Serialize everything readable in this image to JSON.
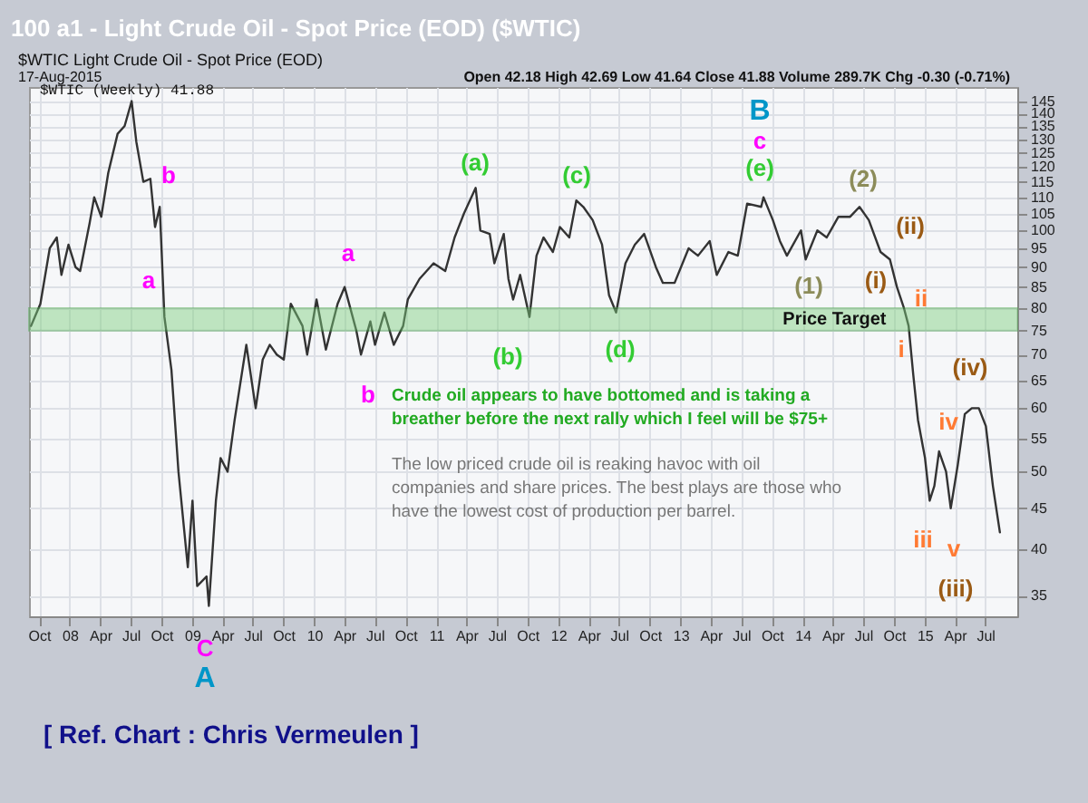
{
  "chart_data": {
    "type": "line",
    "title": "100 a1 - Light Crude Oil - Spot Price (EOD) ($WTIC)",
    "subtitle": "$WTIC Light Crude Oil - Spot Price (EOD)",
    "log": "y",
    "grid": true,
    "xlim": [
      "2007-09-01",
      "2015-10-05"
    ],
    "ylim": [
      33,
      151
    ],
    "xticks": [
      {
        "value": "2007-10-01",
        "label": "Oct"
      },
      {
        "value": "2008-01-01",
        "label": "08"
      },
      {
        "value": "2008-04-01",
        "label": "Apr"
      },
      {
        "value": "2008-07-01",
        "label": "Jul"
      },
      {
        "value": "2008-10-01",
        "label": "Oct"
      },
      {
        "value": "2009-01-01",
        "label": "09"
      },
      {
        "value": "2009-04-01",
        "label": "Apr"
      },
      {
        "value": "2009-07-01",
        "label": "Jul"
      },
      {
        "value": "2009-10-01",
        "label": "Oct"
      },
      {
        "value": "2010-01-01",
        "label": "10"
      },
      {
        "value": "2010-04-01",
        "label": "Apr"
      },
      {
        "value": "2010-07-01",
        "label": "Jul"
      },
      {
        "value": "2010-10-01",
        "label": "Oct"
      },
      {
        "value": "2011-01-01",
        "label": "11"
      },
      {
        "value": "2011-04-01",
        "label": "Apr"
      },
      {
        "value": "2011-07-01",
        "label": "Jul"
      },
      {
        "value": "2011-10-01",
        "label": "Oct"
      },
      {
        "value": "2012-01-01",
        "label": "12"
      },
      {
        "value": "2012-04-01",
        "label": "Apr"
      },
      {
        "value": "2012-07-01",
        "label": "Jul"
      },
      {
        "value": "2012-10-01",
        "label": "Oct"
      },
      {
        "value": "2013-01-01",
        "label": "13"
      },
      {
        "value": "2013-04-01",
        "label": "Apr"
      },
      {
        "value": "2013-07-01",
        "label": "Jul"
      },
      {
        "value": "2013-10-01",
        "label": "Oct"
      },
      {
        "value": "2014-01-01",
        "label": "14"
      },
      {
        "value": "2014-04-01",
        "label": "Apr"
      },
      {
        "value": "2014-07-01",
        "label": "Jul"
      },
      {
        "value": "2014-10-01",
        "label": "Oct"
      },
      {
        "value": "2015-01-01",
        "label": "15"
      },
      {
        "value": "2015-04-01",
        "label": "Apr"
      },
      {
        "value": "2015-07-01",
        "label": "Jul"
      }
    ],
    "yticks": [
      35,
      40,
      45,
      50,
      55,
      60,
      65,
      70,
      75,
      80,
      85,
      90,
      95,
      100,
      105,
      110,
      115,
      120,
      125,
      130,
      135,
      140,
      145
    ],
    "x": [
      "2007-09-07",
      "2007-10-05",
      "2007-11-02",
      "2007-11-23",
      "2007-12-07",
      "2007-12-28",
      "2008-01-18",
      "2008-02-01",
      "2008-02-29",
      "2008-03-14",
      "2008-04-04",
      "2008-04-25",
      "2008-05-23",
      "2008-06-13",
      "2008-07-04",
      "2008-07-18",
      "2008-08-08",
      "2008-08-29",
      "2008-09-12",
      "2008-09-26",
      "2008-10-10",
      "2008-10-31",
      "2008-11-21",
      "2008-12-19",
      "2009-01-02",
      "2009-01-16",
      "2009-02-13",
      "2009-02-20",
      "2009-03-13",
      "2009-03-27",
      "2009-04-17",
      "2009-05-08",
      "2009-06-12",
      "2009-07-10",
      "2009-07-31",
      "2009-08-21",
      "2009-09-11",
      "2009-10-02",
      "2009-10-23",
      "2009-11-27",
      "2009-12-11",
      "2010-01-08",
      "2010-02-05",
      "2010-03-12",
      "2010-04-02",
      "2010-05-07",
      "2010-05-21",
      "2010-06-18",
      "2010-07-02",
      "2010-07-30",
      "2010-08-27",
      "2010-09-24",
      "2010-10-08",
      "2010-11-12",
      "2010-12-24",
      "2011-01-28",
      "2011-02-25",
      "2011-03-25",
      "2011-04-29",
      "2011-05-13",
      "2011-06-10",
      "2011-06-24",
      "2011-07-22",
      "2011-08-05",
      "2011-08-19",
      "2011-09-09",
      "2011-10-07",
      "2011-10-28",
      "2011-11-18",
      "2011-12-16",
      "2012-01-06",
      "2012-02-03",
      "2012-02-24",
      "2012-03-16",
      "2012-04-13",
      "2012-05-11",
      "2012-06-01",
      "2012-06-22",
      "2012-07-20",
      "2012-08-17",
      "2012-09-14",
      "2012-10-19",
      "2012-11-09",
      "2012-12-14",
      "2013-01-25",
      "2013-02-22",
      "2013-03-29",
      "2013-04-19",
      "2013-05-24",
      "2013-06-21",
      "2013-07-19",
      "2013-08-30",
      "2013-09-06",
      "2013-10-04",
      "2013-10-25",
      "2013-11-15",
      "2013-12-27",
      "2014-01-10",
      "2014-02-14",
      "2014-03-14",
      "2014-04-18",
      "2014-05-23",
      "2014-06-20",
      "2014-07-18",
      "2014-08-22",
      "2014-09-19",
      "2014-10-10",
      "2014-10-31",
      "2014-11-14",
      "2014-11-28",
      "2014-12-12",
      "2015-01-02",
      "2015-01-16",
      "2015-01-30",
      "2015-02-13",
      "2015-03-06",
      "2015-03-20",
      "2015-04-10",
      "2015-05-01",
      "2015-05-22",
      "2015-06-12",
      "2015-07-03",
      "2015-07-24",
      "2015-08-14"
    ],
    "series": [
      {
        "color": "#333333",
        "values": [
          76,
          81,
          95,
          98,
          88,
          96,
          90,
          89,
          102,
          110,
          104,
          118,
          132,
          135,
          145,
          129,
          115,
          116,
          101,
          107,
          78,
          67,
          50,
          38,
          46,
          36,
          37,
          34,
          46,
          52,
          50,
          58,
          72,
          60,
          69,
          72,
          70,
          69,
          81,
          76,
          70,
          82,
          71,
          81,
          85,
          75,
          70,
          77,
          72,
          79,
          72,
          76,
          82,
          87,
          91,
          89,
          98,
          105,
          113,
          100,
          99,
          91,
          99,
          87,
          82,
          88,
          78,
          93,
          98,
          94,
          101,
          98,
          109,
          107,
          103,
          96,
          83,
          79,
          91,
          96,
          99,
          90,
          86,
          86,
          95,
          93,
          97,
          88,
          94,
          93,
          108,
          107,
          110,
          103,
          97,
          93,
          100,
          92,
          100,
          98,
          104,
          104,
          107,
          103,
          94,
          92,
          85,
          80,
          76,
          66,
          58,
          52,
          46,
          48,
          53,
          50,
          45,
          51,
          59,
          60,
          60,
          57,
          48,
          42
        ]
      }
    ],
    "bands": [
      {
        "axis": "y",
        "from": 75,
        "to": 80,
        "label": "Price Target",
        "color": "#7ccf7c"
      }
    ],
    "annotations": [
      "b",
      "a",
      "a",
      "b",
      "(a)",
      "(b)",
      "(c)",
      "(d)",
      "(e)",
      "c",
      "B",
      "(1)",
      "(2)",
      "(ii)",
      "(i)",
      "ii",
      "i",
      "(iv)",
      "iv",
      "iii",
      "v",
      "(iii)",
      "C",
      "A",
      "17-Aug-2015",
      "Open 42.18 High 42.69 Low 41.64 Close 41.88 Volume 289.7K Chg -0.30 (-0.71%)",
      "$WTIC (Weekly) 41.88",
      "Crude oil appears to have bottomed and is taking a breather before the next rally which I feel will be $75+",
      "The low priced crude oil is reaking havoc with oil companies and share prices. The best plays are those who have the lowest cost of production per barrel.",
      "[ Ref. Chart : Chris Vermeulen ]"
    ]
  }
}
